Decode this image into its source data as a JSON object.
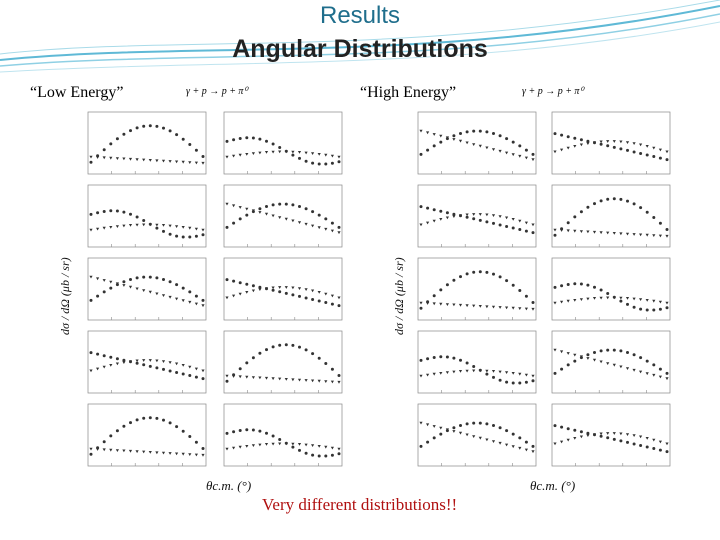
{
  "slide": {
    "title": "Results",
    "subtitle": "Angular Distributions",
    "left_tag": "“Low Energy”",
    "right_tag": "“High Energy”",
    "reaction": "γ + p → p + π⁰",
    "y_axis_label": "dσ / dΩ (μb / sr)",
    "x_axis_label": "θc.m. (°)",
    "note": "Very different distributions!!"
  },
  "colors": {
    "title": "#1f6e8c",
    "accent_lines": "#5fb9d6",
    "note": "#b01010"
  }
}
